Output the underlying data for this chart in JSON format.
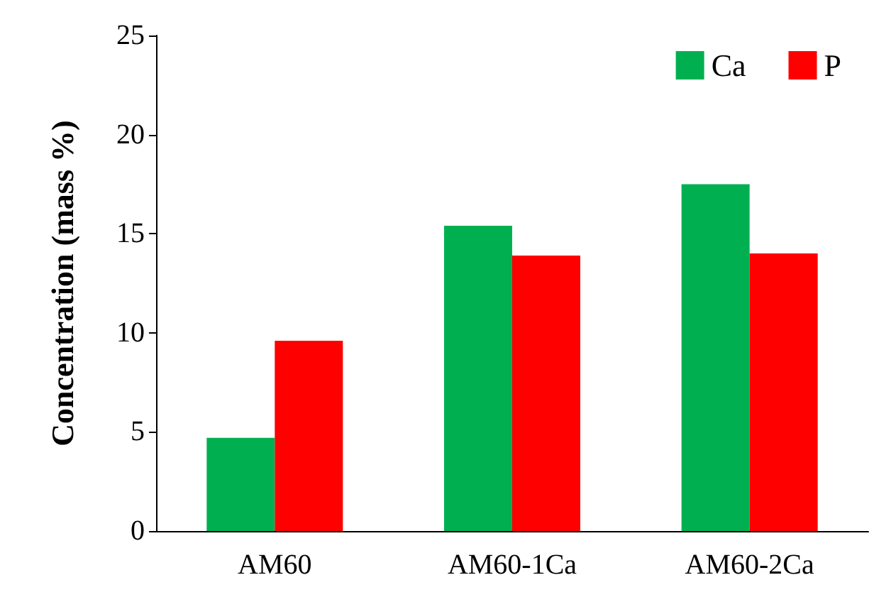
{
  "chart_data": {
    "type": "bar",
    "ylabel": "Concentration (mass %)",
    "categories": [
      "AM60",
      "AM60-1Ca",
      "AM60-2Ca"
    ],
    "series": [
      {
        "name": "Ca",
        "color": "#00b050",
        "values": [
          4.7,
          15.4,
          17.5
        ]
      },
      {
        "name": "P",
        "color": "#ff0000",
        "values": [
          9.6,
          13.9,
          14.0
        ]
      }
    ],
    "ylim": [
      0,
      25
    ],
    "yticks": [
      0,
      5,
      10,
      15,
      20,
      25
    ],
    "grid": false,
    "legend": "top right"
  }
}
